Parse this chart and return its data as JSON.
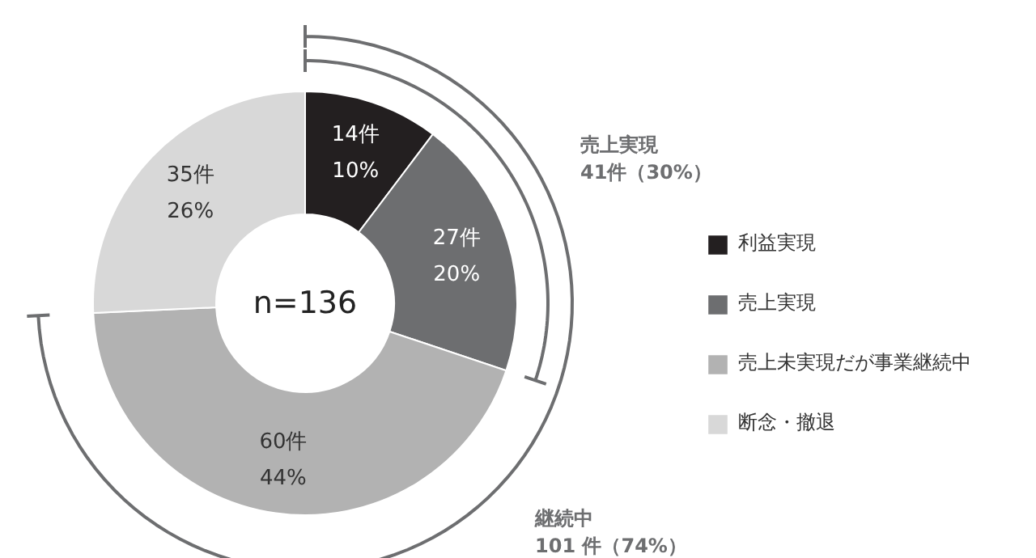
{
  "chart_data": {
    "type": "donut",
    "categories": [
      "利益実現",
      "売上実現",
      "売上未実現だが事業継続中",
      "断念・撤退"
    ],
    "values": [
      14,
      27,
      60,
      35
    ],
    "colors": [
      "#231f20",
      "#6d6e70",
      "#b2b2b2",
      "#d8d8d8"
    ],
    "value_labels": [
      "14件\n10%",
      "27件\n20%",
      "60件\n44%",
      "35件\n26%"
    ],
    "annotations": [
      "n=136",
      "売上実現\n41件（30%）",
      "継続中\n101 件（74%）"
    ],
    "legend": "right"
  }
}
